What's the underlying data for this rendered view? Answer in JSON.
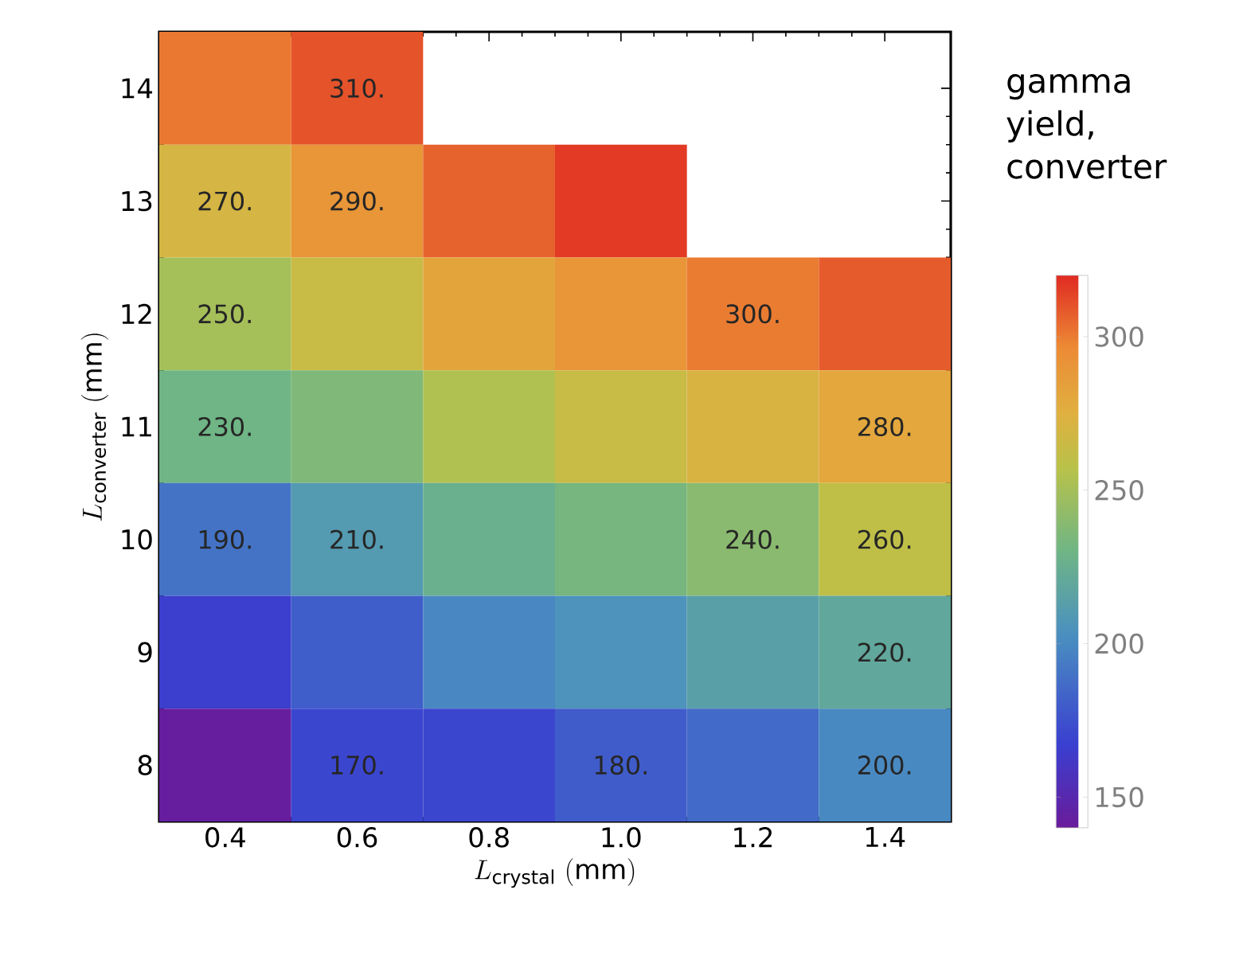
{
  "chart_data": {
    "type": "heatmap",
    "xlabel": "L_{\\mathrm{crystal}}\\ \\mathrm{(mm)}",
    "ylabel": "L_{\\mathrm{converter}}\\ \\mathrm{(mm)}",
    "clabel": "gamma yield, converter",
    "categories": [
      "0.4",
      "0.6",
      "0.8",
      "1.0",
      "1.2",
      "1.4"
    ],
    "y_categories": [
      "14",
      "13",
      "12",
      "11",
      "10",
      "9",
      "8"
    ],
    "cells": [
      [
        301,
        310,
        null,
        null,
        null,
        null
      ],
      [
        270,
        290,
        306,
        316,
        null,
        null
      ],
      [
        250,
        264,
        282,
        290,
        300,
        308
      ],
      [
        230,
        236,
        254,
        264,
        272,
        280
      ],
      [
        190,
        210,
        226,
        233,
        240,
        260
      ],
      [
        166,
        181,
        199,
        205,
        214,
        220
      ],
      [
        142,
        170,
        170,
        180,
        186,
        200
      ]
    ],
    "cell_labels": [
      [
        null,
        "310.",
        null,
        null,
        null,
        null
      ],
      [
        "270.",
        "290.",
        null,
        null,
        null,
        null
      ],
      [
        "250.",
        null,
        null,
        null,
        "300.",
        null
      ],
      [
        "230.",
        null,
        null,
        null,
        null,
        "280."
      ],
      [
        "190.",
        "210.",
        null,
        null,
        "240.",
        "260."
      ],
      [
        null,
        null,
        null,
        null,
        null,
        "220."
      ],
      [
        null,
        "170.",
        null,
        "180.",
        null,
        "200."
      ]
    ],
    "clim": [
      140,
      320
    ],
    "cticks": [
      150,
      200,
      250,
      300
    ]
  }
}
